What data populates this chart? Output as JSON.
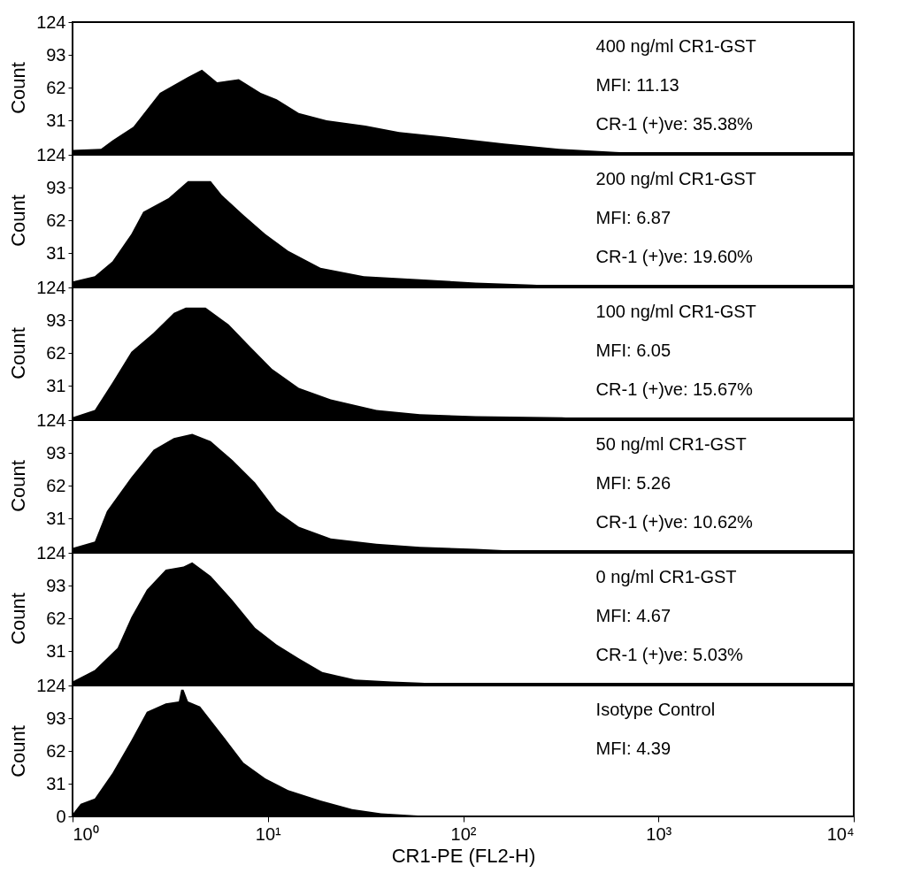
{
  "chart_data": [
    {
      "type": "area",
      "ylabel": "Count",
      "log": "x",
      "tick_labels": "y",
      "color": "#000000",
      "xlim": [
        1,
        10000
      ],
      "ylim": [
        0,
        124
      ],
      "yticks": [
        31,
        62,
        93,
        124
      ],
      "x": [
        1,
        1.4,
        1.6,
        2.05,
        2.8,
        3.9,
        4.6,
        5.5,
        7.1,
        9.2,
        11.1,
        14.4,
        20,
        31.6,
        47,
        84,
        162,
        310,
        600,
        800
      ],
      "values": [
        3,
        4,
        12,
        25,
        57,
        72,
        79,
        67,
        70,
        57,
        51,
        38,
        31,
        26,
        20,
        15,
        9,
        4,
        1,
        0
      ],
      "annotations": [
        "400 ng/ml CR1-GST",
        "MFI: 11.13",
        "CR-1 (+)ve: 35.38%"
      ]
    },
    {
      "type": "area",
      "ylabel": "Count",
      "log": "x",
      "tick_labels": "y",
      "color": "#000000",
      "xlim": [
        1,
        10000
      ],
      "ylim": [
        0,
        124
      ],
      "yticks": [
        31,
        62,
        93,
        124
      ],
      "x": [
        1,
        1.3,
        1.6,
        2.0,
        2.3,
        3.1,
        3.9,
        5.1,
        5.8,
        7.5,
        9.7,
        12.7,
        18.6,
        31,
        60,
        116,
        225,
        300
      ],
      "values": [
        4,
        9,
        23,
        49,
        70,
        83,
        99,
        99,
        86,
        67,
        49,
        33,
        17,
        9,
        6,
        3,
        1,
        0
      ],
      "annotations": [
        "200 ng/ml CR1-GST",
        "MFI: 6.87",
        "CR-1 (+)ve: 19.60%"
      ]
    },
    {
      "type": "area",
      "ylabel": "Count",
      "log": "x",
      "tick_labels": "y",
      "color": "#000000",
      "xlim": [
        1,
        10000
      ],
      "ylim": [
        0,
        124
      ],
      "yticks": [
        31,
        62,
        93,
        124
      ],
      "x": [
        1,
        1.3,
        1.6,
        2.0,
        2.6,
        3.3,
        3.8,
        4.8,
        6.3,
        8.1,
        10.5,
        14.4,
        21,
        36,
        60,
        116,
        320,
        400
      ],
      "values": [
        1,
        8,
        34,
        63,
        81,
        100,
        105,
        105,
        89,
        68,
        47,
        29,
        18,
        8,
        4,
        2,
        1,
        0
      ],
      "annotations": [
        "100 ng/ml CR1-GST",
        "MFI: 6.05",
        "CR-1 (+)ve: 15.67%"
      ]
    },
    {
      "type": "area",
      "ylabel": "Count",
      "log": "x",
      "tick_labels": "y",
      "color": "#000000",
      "xlim": [
        1,
        10000
      ],
      "ylim": [
        0,
        124
      ],
      "yticks": [
        31,
        62,
        93,
        124
      ],
      "x": [
        1,
        1.3,
        1.5,
        2.0,
        2.6,
        3.3,
        4.1,
        5.1,
        6.6,
        8.6,
        11.1,
        14.4,
        21,
        36,
        60,
        116,
        200
      ],
      "values": [
        3,
        9,
        38,
        70,
        96,
        107,
        111,
        104,
        86,
        65,
        38,
        23,
        12,
        7,
        4,
        2,
        0
      ],
      "annotations": [
        "50 ng/ml CR1-GST",
        "MFI: 5.26",
        "CR-1 (+)ve: 10.62%"
      ]
    },
    {
      "type": "area",
      "ylabel": "Count",
      "log": "x",
      "tick_labels": "y",
      "color": "#000000",
      "xlim": [
        1,
        10000
      ],
      "ylim": [
        0,
        124
      ],
      "yticks": [
        31,
        62,
        93,
        124
      ],
      "x": [
        1,
        1.3,
        1.7,
        2.0,
        2.4,
        3.0,
        3.7,
        4.1,
        5.1,
        6.6,
        8.6,
        11.1,
        14.4,
        19,
        28,
        43,
        60,
        80
      ],
      "values": [
        2,
        13,
        34,
        63,
        89,
        108,
        111,
        115,
        102,
        79,
        53,
        37,
        24,
        11,
        4,
        2,
        1,
        0
      ],
      "annotations": [
        "0 ng/ml CR1-GST",
        "MFI: 4.67",
        "CR-1 (+)ve: 5.03%"
      ]
    },
    {
      "type": "area",
      "ylabel": "Count",
      "xlabel": "CR1-PE (FL2-H)",
      "log": "x",
      "color": "#000000",
      "xlim": [
        1,
        10000
      ],
      "xticks": [
        {
          "value": 1,
          "label": "10⁰"
        },
        {
          "value": 10,
          "label": "10¹"
        },
        {
          "value": 100,
          "label": "10²"
        },
        {
          "value": 1000,
          "label": "10³"
        },
        {
          "value": 10000,
          "label": "10⁴"
        }
      ],
      "ylim": [
        0,
        124
      ],
      "yticks": [
        0,
        31,
        62,
        93,
        124
      ],
      "x": [
        1,
        1.1,
        1.3,
        1.6,
        2.0,
        2.4,
        3.0,
        3.5,
        3.6,
        3.7,
        3.9,
        4.5,
        5.8,
        7.5,
        9.7,
        12.7,
        18.6,
        27,
        38,
        56,
        70
      ],
      "values": [
        2,
        12,
        17,
        41,
        72,
        99,
        107,
        109,
        120,
        120,
        109,
        104,
        78,
        51,
        36,
        25,
        15,
        7,
        3,
        1,
        0
      ],
      "annotations": [
        "Isotype Control",
        "MFI: 4.39"
      ]
    }
  ]
}
